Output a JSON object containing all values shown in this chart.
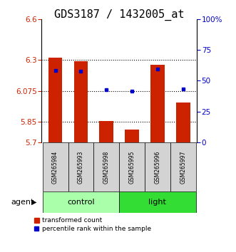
{
  "title": "GDS3187 / 1432005_at",
  "samples": [
    "GSM265984",
    "GSM265993",
    "GSM265998",
    "GSM265995",
    "GSM265996",
    "GSM265997"
  ],
  "bar_values": [
    6.32,
    6.29,
    5.855,
    5.795,
    6.265,
    5.99
  ],
  "dot_values": [
    6.225,
    6.22,
    6.085,
    6.075,
    6.235,
    6.09
  ],
  "bar_color": "#CC2200",
  "dot_color": "#0000CC",
  "ylim": [
    5.7,
    6.6
  ],
  "yticks": [
    5.7,
    5.85,
    6.075,
    6.3,
    6.6
  ],
  "ytick_labels": [
    "5.7",
    "5.85",
    "6.075",
    "6.3",
    "6.6"
  ],
  "right_yticks": [
    0,
    25,
    50,
    75,
    100
  ],
  "right_ytick_labels": [
    "0",
    "25",
    "50",
    "75",
    "100%"
  ],
  "baseline": 5.7,
  "bar_width": 0.55,
  "grid_dotted_values": [
    5.85,
    6.075,
    6.3
  ],
  "legend_bar_label": "transformed count",
  "legend_dot_label": "percentile rank within the sample",
  "agent_label": "agent",
  "title_fontsize": 11,
  "label_color_left": "#CC2200",
  "label_color_right": "#0000CC",
  "group_info": [
    {
      "label": "control",
      "start": 0,
      "end": 2,
      "color": "#AAFFAA"
    },
    {
      "label": "light",
      "start": 3,
      "end": 5,
      "color": "#33DD33"
    }
  ]
}
